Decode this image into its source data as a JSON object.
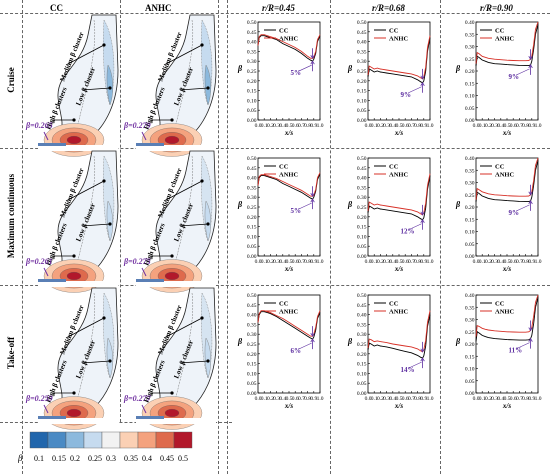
{
  "headers": {
    "cc": "CC",
    "anhc": "ANHC",
    "r1": "r/R=0.45",
    "r2": "r/R=0.68",
    "r3": "r/R=0.90"
  },
  "rows": [
    {
      "label": "Cruise",
      "beta_cc": "β=0.265",
      "beta_anhc": "β=0.279"
    },
    {
      "label": "Maximum continuous",
      "beta_cc": "β=0.261",
      "beta_anhc": "β=0.275"
    },
    {
      "label": "Take-off",
      "beta_cc": "β=0.259",
      "beta_anhc": "β=0.277"
    }
  ],
  "contour_labels": {
    "medium": "Medium β cluster",
    "low": "Low β cluster",
    "high": "High β clusters"
  },
  "colorbar": {
    "symbol": "β",
    "ticks": [
      "0.1",
      "0.15",
      "0.2",
      "0.25",
      "0.3",
      "0.35",
      "0.4",
      "0.45",
      "0.5"
    ],
    "colors": [
      "#2166ac",
      "#4a8ac4",
      "#8cb9dd",
      "#c6dbef",
      "#f2f2f2",
      "#fbd0b4",
      "#f4a27e",
      "#de6a4d",
      "#b2182b"
    ]
  },
  "chart_data": [
    {
      "type": "line",
      "row": "Cruise",
      "col": "r/R=0.45",
      "xlabel": "x/s",
      "ylabel": "β",
      "xlim": [
        0,
        1
      ],
      "ylim": [
        0,
        0.5
      ],
      "xticks": [
        "0.0",
        "0.1",
        "0.2",
        "0.3",
        "0.4",
        "0.5",
        "0.6",
        "0.7",
        "0.8",
        "0.9",
        "1.0"
      ],
      "yticks": [
        "0.00",
        "0.05",
        "0.10",
        "0.15",
        "0.20",
        "0.25",
        "0.30",
        "0.35",
        "0.40",
        "0.45",
        "0.50"
      ],
      "legend": "top-right",
      "annotation": "5%",
      "x": [
        0,
        0.02,
        0.05,
        0.1,
        0.15,
        0.2,
        0.3,
        0.4,
        0.5,
        0.6,
        0.7,
        0.8,
        0.85,
        0.88,
        0.9,
        0.93,
        0.96,
        1.0
      ],
      "series": [
        {
          "name": "CC",
          "color": "#000000",
          "values": [
            0.38,
            0.42,
            0.43,
            0.43,
            0.425,
            0.42,
            0.41,
            0.39,
            0.375,
            0.36,
            0.34,
            0.315,
            0.305,
            0.3,
            0.31,
            0.34,
            0.4,
            0.43
          ]
        },
        {
          "name": "ANHC",
          "color": "#d73027",
          "values": [
            0.38,
            0.425,
            0.435,
            0.435,
            0.43,
            0.425,
            0.415,
            0.4,
            0.385,
            0.37,
            0.35,
            0.325,
            0.315,
            0.315,
            0.32,
            0.35,
            0.41,
            0.435
          ]
        }
      ]
    },
    {
      "type": "line",
      "row": "Cruise",
      "col": "r/R=0.68",
      "xlabel": "x/s",
      "ylabel": "β",
      "xlim": [
        0,
        1
      ],
      "ylim": [
        0,
        0.5
      ],
      "xticks": [
        "0.0",
        "0.1",
        "0.2",
        "0.3",
        "0.4",
        "0.5",
        "0.6",
        "0.7",
        "0.8",
        "0.9",
        "1.0"
      ],
      "yticks": [
        "0.00",
        "0.05",
        "0.10",
        "0.15",
        "0.20",
        "0.25",
        "0.30",
        "0.35",
        "0.40",
        "0.45",
        "0.50"
      ],
      "legend": "top-right",
      "annotation": "9%",
      "x": [
        0,
        0.02,
        0.05,
        0.1,
        0.15,
        0.2,
        0.3,
        0.4,
        0.5,
        0.6,
        0.7,
        0.8,
        0.85,
        0.88,
        0.9,
        0.93,
        0.96,
        1.0
      ],
      "series": [
        {
          "name": "CC",
          "color": "#000000",
          "values": [
            0.22,
            0.26,
            0.255,
            0.245,
            0.25,
            0.245,
            0.24,
            0.235,
            0.23,
            0.225,
            0.22,
            0.205,
            0.195,
            0.19,
            0.2,
            0.25,
            0.35,
            0.42
          ]
        },
        {
          "name": "ANHC",
          "color": "#d73027",
          "values": [
            0.23,
            0.275,
            0.27,
            0.26,
            0.265,
            0.26,
            0.255,
            0.25,
            0.245,
            0.24,
            0.235,
            0.225,
            0.215,
            0.21,
            0.22,
            0.27,
            0.37,
            0.43
          ]
        }
      ]
    },
    {
      "type": "line",
      "row": "Cruise",
      "col": "r/R=0.90",
      "xlabel": "x/s",
      "ylabel": "β",
      "xlim": [
        0,
        1
      ],
      "ylim": [
        0,
        0.4
      ],
      "xticks": [
        "0.0",
        "0.1",
        "0.2",
        "0.3",
        "0.4",
        "0.5",
        "0.6",
        "0.7",
        "0.8",
        "0.9",
        "1.0"
      ],
      "yticks": [
        "0.00",
        "0.05",
        "0.10",
        "0.15",
        "0.20",
        "0.25",
        "0.30",
        "0.35",
        "0.40"
      ],
      "legend": "top-left",
      "annotation": "9%",
      "x": [
        0,
        0.02,
        0.05,
        0.1,
        0.15,
        0.2,
        0.3,
        0.4,
        0.5,
        0.6,
        0.7,
        0.8,
        0.85,
        0.88,
        0.9,
        0.93,
        0.96,
        1.0
      ],
      "series": [
        {
          "name": "CC",
          "color": "#000000",
          "values": [
            0.22,
            0.26,
            0.255,
            0.245,
            0.24,
            0.235,
            0.23,
            0.228,
            0.226,
            0.225,
            0.223,
            0.222,
            0.222,
            0.225,
            0.24,
            0.29,
            0.35,
            0.39
          ]
        },
        {
          "name": "ANHC",
          "color": "#d73027",
          "values": [
            0.23,
            0.275,
            0.27,
            0.26,
            0.256,
            0.252,
            0.248,
            0.246,
            0.244,
            0.243,
            0.242,
            0.242,
            0.243,
            0.248,
            0.26,
            0.31,
            0.37,
            0.4
          ]
        }
      ]
    },
    {
      "type": "line",
      "row": "Maximum continuous",
      "col": "r/R=0.45",
      "xlabel": "x/s",
      "ylabel": "β",
      "xlim": [
        0,
        1
      ],
      "ylim": [
        0,
        0.5
      ],
      "xticks": [
        "0.0",
        "0.1",
        "0.2",
        "0.3",
        "0.4",
        "0.5",
        "0.6",
        "0.7",
        "0.8",
        "0.9",
        "1.0"
      ],
      "yticks": [
        "0.00",
        "0.05",
        "0.10",
        "0.15",
        "0.20",
        "0.25",
        "0.30",
        "0.35",
        "0.40",
        "0.45",
        "0.50"
      ],
      "legend": "top-right",
      "annotation": "5%",
      "x": [
        0,
        0.02,
        0.05,
        0.1,
        0.15,
        0.2,
        0.3,
        0.4,
        0.5,
        0.6,
        0.7,
        0.8,
        0.85,
        0.88,
        0.9,
        0.93,
        0.96,
        1.0
      ],
      "series": [
        {
          "name": "CC",
          "color": "#000000",
          "values": [
            0.36,
            0.4,
            0.41,
            0.41,
            0.405,
            0.4,
            0.39,
            0.37,
            0.355,
            0.34,
            0.325,
            0.305,
            0.295,
            0.29,
            0.3,
            0.33,
            0.39,
            0.42
          ]
        },
        {
          "name": "ANHC",
          "color": "#d73027",
          "values": [
            0.36,
            0.405,
            0.415,
            0.415,
            0.41,
            0.405,
            0.395,
            0.38,
            0.365,
            0.35,
            0.335,
            0.315,
            0.305,
            0.305,
            0.31,
            0.34,
            0.4,
            0.425
          ]
        }
      ]
    },
    {
      "type": "line",
      "row": "Maximum continuous",
      "col": "r/R=0.68",
      "xlabel": "x/s",
      "ylabel": "β",
      "xlim": [
        0,
        1
      ],
      "ylim": [
        0,
        0.5
      ],
      "xticks": [
        "0.0",
        "0.1",
        "0.2",
        "0.3",
        "0.4",
        "0.5",
        "0.6",
        "0.7",
        "0.8",
        "0.9",
        "1.0"
      ],
      "yticks": [
        "0.00",
        "0.05",
        "0.10",
        "0.15",
        "0.20",
        "0.25",
        "0.30",
        "0.35",
        "0.40",
        "0.45",
        "0.50"
      ],
      "legend": "top-right",
      "annotation": "12%",
      "x": [
        0,
        0.02,
        0.05,
        0.1,
        0.15,
        0.2,
        0.3,
        0.4,
        0.5,
        0.6,
        0.7,
        0.8,
        0.85,
        0.88,
        0.9,
        0.93,
        0.96,
        1.0
      ],
      "series": [
        {
          "name": "CC",
          "color": "#000000",
          "values": [
            0.22,
            0.255,
            0.25,
            0.24,
            0.245,
            0.24,
            0.235,
            0.23,
            0.225,
            0.22,
            0.215,
            0.2,
            0.19,
            0.185,
            0.195,
            0.245,
            0.34,
            0.41
          ]
        },
        {
          "name": "ANHC",
          "color": "#d73027",
          "values": [
            0.23,
            0.275,
            0.27,
            0.26,
            0.265,
            0.26,
            0.255,
            0.25,
            0.245,
            0.24,
            0.235,
            0.225,
            0.215,
            0.21,
            0.22,
            0.27,
            0.36,
            0.42
          ]
        }
      ]
    },
    {
      "type": "line",
      "row": "Maximum continuous",
      "col": "r/R=0.90",
      "xlabel": "x/s",
      "ylabel": "β",
      "xlim": [
        0,
        1
      ],
      "ylim": [
        0,
        0.4
      ],
      "xticks": [
        "0.0",
        "0.1",
        "0.2",
        "0.3",
        "0.4",
        "0.5",
        "0.6",
        "0.7",
        "0.8",
        "0.9",
        "1.0"
      ],
      "yticks": [
        "0.00",
        "0.05",
        "0.10",
        "0.15",
        "0.20",
        "0.25",
        "0.30",
        "0.35",
        "0.40"
      ],
      "legend": "top-left",
      "annotation": "9%",
      "x": [
        0,
        0.02,
        0.05,
        0.1,
        0.15,
        0.2,
        0.3,
        0.4,
        0.5,
        0.6,
        0.7,
        0.8,
        0.85,
        0.88,
        0.9,
        0.93,
        0.96,
        1.0
      ],
      "series": [
        {
          "name": "CC",
          "color": "#000000",
          "values": [
            0.22,
            0.26,
            0.255,
            0.245,
            0.24,
            0.235,
            0.23,
            0.228,
            0.226,
            0.225,
            0.223,
            0.222,
            0.222,
            0.225,
            0.24,
            0.29,
            0.35,
            0.39
          ]
        },
        {
          "name": "ANHC",
          "color": "#d73027",
          "values": [
            0.23,
            0.275,
            0.27,
            0.262,
            0.258,
            0.254,
            0.25,
            0.248,
            0.246,
            0.245,
            0.244,
            0.244,
            0.245,
            0.25,
            0.262,
            0.31,
            0.37,
            0.4
          ]
        }
      ]
    },
    {
      "type": "line",
      "row": "Take-off",
      "col": "r/R=0.45",
      "xlabel": "x/s",
      "ylabel": "β",
      "xlim": [
        0,
        1
      ],
      "ylim": [
        0,
        0.5
      ],
      "xticks": [
        "0.0",
        "0.1",
        "0.2",
        "0.3",
        "0.4",
        "0.5",
        "0.6",
        "0.7",
        "0.8",
        "0.9",
        "1.0"
      ],
      "yticks": [
        "0.00",
        "0.05",
        "0.10",
        "0.15",
        "0.20",
        "0.25",
        "0.30",
        "0.35",
        "0.40",
        "0.45",
        "0.50"
      ],
      "legend": "top-right",
      "annotation": "6%",
      "x": [
        0,
        0.02,
        0.05,
        0.1,
        0.15,
        0.2,
        0.3,
        0.4,
        0.5,
        0.6,
        0.7,
        0.8,
        0.85,
        0.88,
        0.9,
        0.93,
        0.96,
        1.0
      ],
      "series": [
        {
          "name": "CC",
          "color": "#000000",
          "values": [
            0.36,
            0.4,
            0.415,
            0.415,
            0.41,
            0.405,
            0.39,
            0.37,
            0.35,
            0.33,
            0.31,
            0.29,
            0.28,
            0.275,
            0.285,
            0.32,
            0.38,
            0.41
          ]
        },
        {
          "name": "ANHC",
          "color": "#d73027",
          "values": [
            0.36,
            0.405,
            0.42,
            0.42,
            0.415,
            0.41,
            0.395,
            0.38,
            0.36,
            0.34,
            0.32,
            0.3,
            0.29,
            0.29,
            0.3,
            0.335,
            0.39,
            0.42
          ]
        }
      ]
    },
    {
      "type": "line",
      "row": "Take-off",
      "col": "r/R=0.68",
      "xlabel": "x/s",
      "ylabel": "β",
      "xlim": [
        0,
        1
      ],
      "ylim": [
        0,
        0.5
      ],
      "xticks": [
        "0.0",
        "0.1",
        "0.2",
        "0.3",
        "0.4",
        "0.5",
        "0.6",
        "0.7",
        "0.8",
        "0.9",
        "1.0"
      ],
      "yticks": [
        "0.00",
        "0.05",
        "0.10",
        "0.15",
        "0.20",
        "0.25",
        "0.30",
        "0.35",
        "0.40",
        "0.45",
        "0.50"
      ],
      "legend": "top-right",
      "annotation": "14%",
      "x": [
        0,
        0.02,
        0.05,
        0.1,
        0.15,
        0.2,
        0.3,
        0.4,
        0.5,
        0.6,
        0.7,
        0.8,
        0.85,
        0.88,
        0.9,
        0.93,
        0.96,
        1.0
      ],
      "series": [
        {
          "name": "CC",
          "color": "#000000",
          "values": [
            0.22,
            0.255,
            0.25,
            0.24,
            0.245,
            0.24,
            0.235,
            0.228,
            0.22,
            0.212,
            0.205,
            0.192,
            0.182,
            0.178,
            0.19,
            0.24,
            0.34,
            0.4
          ]
        },
        {
          "name": "ANHC",
          "color": "#d73027",
          "values": [
            0.23,
            0.275,
            0.272,
            0.262,
            0.266,
            0.262,
            0.257,
            0.25,
            0.245,
            0.24,
            0.235,
            0.225,
            0.215,
            0.21,
            0.22,
            0.27,
            0.36,
            0.42
          ]
        }
      ]
    },
    {
      "type": "line",
      "row": "Take-off",
      "col": "r/R=0.90",
      "xlabel": "x/s",
      "ylabel": "β",
      "xlim": [
        0,
        1
      ],
      "ylim": [
        0,
        0.4
      ],
      "xticks": [
        "0.0",
        "0.1",
        "0.2",
        "0.3",
        "0.4",
        "0.5",
        "0.6",
        "0.7",
        "0.8",
        "0.9",
        "1.0"
      ],
      "yticks": [
        "0.00",
        "0.05",
        "0.10",
        "0.15",
        "0.20",
        "0.25",
        "0.30",
        "0.35",
        "0.40"
      ],
      "legend": "top-left",
      "annotation": "11%",
      "x": [
        0,
        0.02,
        0.05,
        0.1,
        0.15,
        0.2,
        0.3,
        0.4,
        0.5,
        0.6,
        0.7,
        0.8,
        0.85,
        0.88,
        0.9,
        0.93,
        0.96,
        1.0
      ],
      "series": [
        {
          "name": "CC",
          "color": "#000000",
          "values": [
            0.21,
            0.25,
            0.245,
            0.235,
            0.23,
            0.226,
            0.222,
            0.22,
            0.218,
            0.217,
            0.216,
            0.216,
            0.217,
            0.222,
            0.235,
            0.285,
            0.35,
            0.39
          ]
        },
        {
          "name": "ANHC",
          "color": "#d73027",
          "values": [
            0.23,
            0.275,
            0.272,
            0.264,
            0.26,
            0.257,
            0.254,
            0.252,
            0.25,
            0.249,
            0.248,
            0.248,
            0.25,
            0.255,
            0.268,
            0.315,
            0.37,
            0.4
          ]
        }
      ]
    }
  ]
}
